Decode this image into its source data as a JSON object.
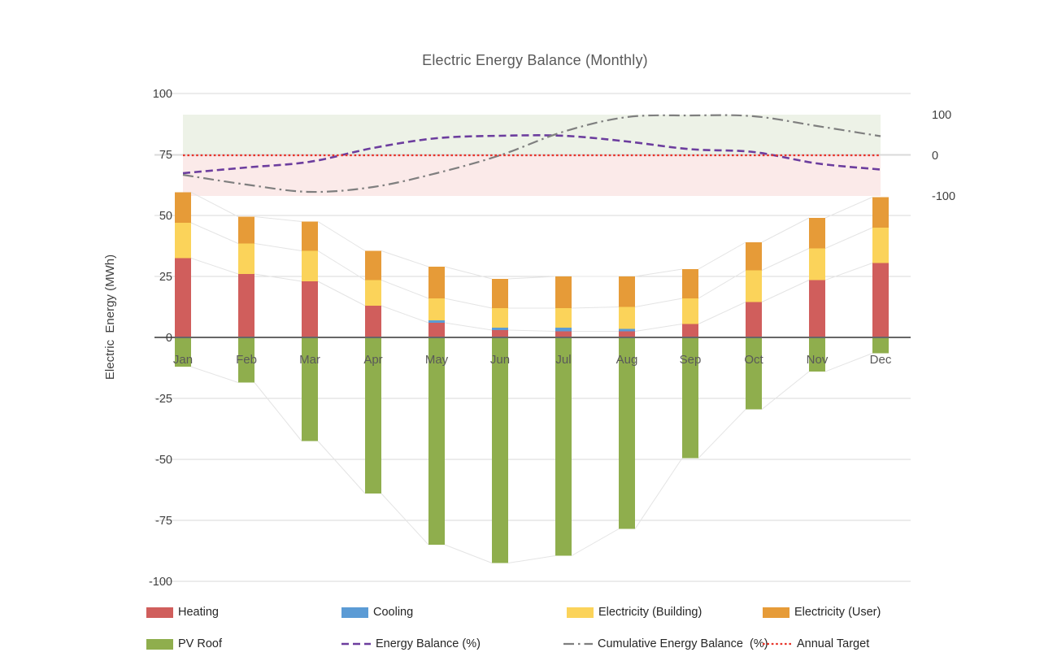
{
  "chart_data": {
    "type": "bar+line (stacked monthly energy balance combo)",
    "title": "Electric Energy Balance (Monthly)",
    "categories": [
      "Jan",
      "Feb",
      "Mar",
      "Apr",
      "May",
      "Jun",
      "Jul",
      "Aug",
      "Sep",
      "Oct",
      "Nov",
      "Dec"
    ],
    "left_axis": {
      "label": "Electric  Energy (MWh)",
      "tick_labels": [
        "100",
        "75",
        "50",
        "25",
        "0",
        "-25",
        "-50",
        "-75",
        "-100"
      ],
      "tick_values": [
        100,
        75,
        50,
        25,
        0,
        -25,
        -50,
        -75,
        -100
      ],
      "range": [
        -100,
        100
      ],
      "grid": true
    },
    "right_axis": {
      "tick_labels": [
        "100",
        "0",
        "-100"
      ],
      "tick_values": [
        100,
        0,
        -100
      ],
      "range": [
        -100,
        100
      ],
      "unit": "%"
    },
    "bar_series": [
      {
        "name": "Heating",
        "color": "#D05E5C",
        "values": [
          32.5,
          26,
          23,
          13,
          6,
          3,
          2.5,
          2.5,
          5.5,
          14.5,
          23.5,
          30.5
        ]
      },
      {
        "name": "Cooling",
        "color": "#5B9BD5",
        "values": [
          0,
          0,
          0,
          0,
          1,
          1,
          1.5,
          1,
          0,
          0,
          0,
          0
        ]
      },
      {
        "name": "Electricity (Building)",
        "color": "#FBD35A",
        "values": [
          14.5,
          12.5,
          12.5,
          10.5,
          9,
          8,
          8,
          9,
          10.5,
          13,
          13,
          14.5
        ]
      },
      {
        "name": "Electricity (User)",
        "color": "#E69B38",
        "values": [
          12.5,
          11,
          12,
          12,
          13,
          12,
          13,
          12.5,
          12,
          11.5,
          12.5,
          12.5
        ]
      },
      {
        "name": "PV Roof",
        "color": "#8FAE4D",
        "values": [
          -12,
          -18.5,
          -42.5,
          -64,
          -85,
          -92.5,
          -89.5,
          -78.5,
          -49.5,
          -29.5,
          -14,
          -6.5
        ]
      }
    ],
    "line_series": [
      {
        "name": "Energy Balance (%)",
        "color": "#6C3D9E",
        "dash": "dashed",
        "smooth": true,
        "values": [
          -44,
          -30,
          -16,
          18,
          42,
          48,
          48,
          34,
          15,
          8,
          -20,
          -35
        ]
      },
      {
        "name": "Cumulative Energy Balance  (%)",
        "color": "#7F7F7F",
        "dash": "dashdot",
        "smooth": true,
        "values": [
          -48,
          -72,
          -90,
          -78,
          -44,
          0,
          58,
          94,
          98,
          96,
          72,
          47
        ]
      },
      {
        "name": "Annual Target",
        "color": "#E8342A",
        "dash": "dotted",
        "smooth": false,
        "values": [
          0,
          0,
          0,
          0,
          0,
          0,
          0,
          0,
          0,
          0,
          0,
          0
        ]
      }
    ],
    "bands": [
      {
        "name": "surplus-band",
        "from": 0,
        "to": 100,
        "color": "#EDF2E7"
      },
      {
        "name": "deficit-band",
        "from": -100,
        "to": 0,
        "color": "#FBEAE9"
      }
    ],
    "grid_color": "#D9D9D9",
    "zero_line_color": "#666666",
    "connector_color": "#E4E4E4",
    "text_colors": {
      "title": "#595959",
      "ticks": "#3F3F3F",
      "months": "#595959"
    }
  },
  "legend": {
    "rows": [
      [
        {
          "label": "Heating",
          "swatch": "rect",
          "color": "#D05E5C"
        },
        {
          "label": "Cooling",
          "swatch": "rect",
          "color": "#5B9BD5"
        },
        {
          "label": "Electricity (Building)",
          "swatch": "rect",
          "color": "#FBD35A"
        },
        {
          "label": "Electricity (User)",
          "swatch": "rect",
          "color": "#E69B38"
        }
      ],
      [
        {
          "label": "PV Roof",
          "swatch": "rect",
          "color": "#8FAE4D"
        },
        {
          "label": "Energy Balance (%)",
          "swatch": "dashed",
          "color": "#6C3D9E"
        },
        {
          "label": "Cumulative Energy Balance  (%)",
          "swatch": "dashdot",
          "color": "#7F7F7F"
        },
        {
          "label": "Annual Target",
          "swatch": "dotted",
          "color": "#E8342A"
        }
      ]
    ]
  }
}
